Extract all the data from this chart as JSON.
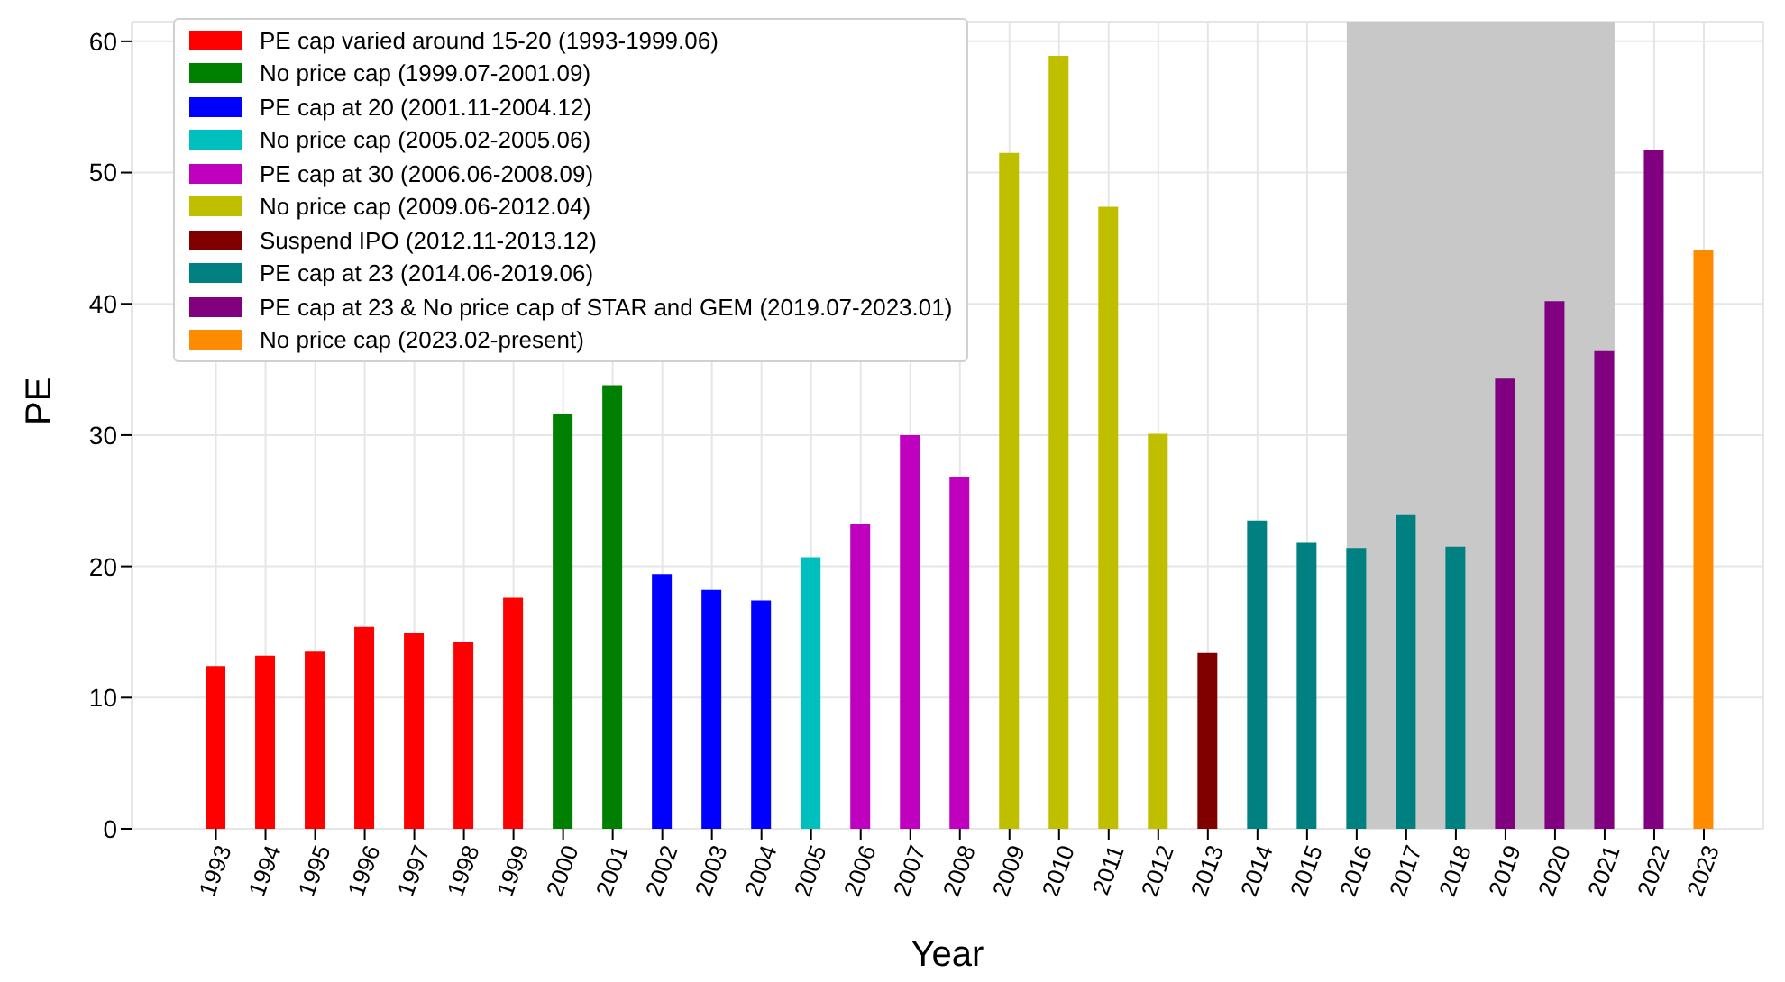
{
  "chart_data": {
    "type": "bar",
    "xlabel": "Year",
    "ylabel": "PE",
    "categories": [
      "1993",
      "1994",
      "1995",
      "1996",
      "1997",
      "1998",
      "1999",
      "2000",
      "2001",
      "2002",
      "2003",
      "2004",
      "2005",
      "2006",
      "2007",
      "2008",
      "2009",
      "2010",
      "2011",
      "2012",
      "2013",
      "2014",
      "2015",
      "2016",
      "2017",
      "2018",
      "2019",
      "2020",
      "2021",
      "2022",
      "2023"
    ],
    "stacked": true,
    "series": [
      {
        "name": "PE cap varied around 15-20 (1993-1999.06)",
        "color": "#ff0000",
        "values": [
          12.4,
          13.2,
          13.5,
          15.4,
          14.9,
          14.2,
          17.6,
          null,
          null,
          null,
          null,
          null,
          null,
          null,
          null,
          null,
          null,
          null,
          null,
          null,
          null,
          null,
          null,
          null,
          null,
          null,
          null,
          null,
          null,
          null,
          null
        ]
      },
      {
        "name": "No price cap (1999.07-2001.09)",
        "color": "#008000",
        "values": [
          null,
          null,
          null,
          null,
          null,
          null,
          null,
          31.6,
          33.8,
          null,
          null,
          null,
          null,
          null,
          null,
          null,
          null,
          null,
          null,
          null,
          null,
          null,
          null,
          null,
          null,
          null,
          null,
          null,
          null,
          null,
          null
        ]
      },
      {
        "name": "PE cap at 20 (2001.11-2004.12)",
        "color": "#0000ff",
        "values": [
          null,
          null,
          null,
          null,
          null,
          null,
          null,
          null,
          null,
          19.4,
          18.2,
          17.4,
          null,
          null,
          null,
          null,
          null,
          null,
          null,
          null,
          null,
          null,
          null,
          null,
          null,
          null,
          null,
          null,
          null,
          null,
          null
        ]
      },
      {
        "name": "No price cap (2005.02-2005.06)",
        "color": "#00bfbf",
        "values": [
          null,
          null,
          null,
          null,
          null,
          null,
          null,
          null,
          null,
          null,
          null,
          null,
          20.7,
          null,
          null,
          null,
          null,
          null,
          null,
          null,
          null,
          null,
          null,
          null,
          null,
          null,
          null,
          null,
          null,
          null,
          null
        ]
      },
      {
        "name": "PE cap at 30 (2006.06-2008.09)",
        "color": "#bf00bf",
        "values": [
          null,
          null,
          null,
          null,
          null,
          null,
          null,
          null,
          null,
          null,
          null,
          null,
          null,
          23.2,
          30.0,
          26.8,
          null,
          null,
          null,
          null,
          null,
          null,
          null,
          null,
          null,
          null,
          null,
          null,
          null,
          null,
          null
        ]
      },
      {
        "name": "No price cap (2009.06-2012.04)",
        "color": "#bfbf00",
        "values": [
          null,
          null,
          null,
          null,
          null,
          null,
          null,
          null,
          null,
          null,
          null,
          null,
          null,
          null,
          null,
          null,
          51.5,
          58.9,
          47.4,
          30.1,
          null,
          null,
          null,
          null,
          null,
          null,
          null,
          null,
          null,
          null,
          null
        ]
      },
      {
        "name": "Suspend IPO (2012.11-2013.12)",
        "color": "#800000",
        "values": [
          null,
          null,
          null,
          null,
          null,
          null,
          null,
          null,
          null,
          null,
          null,
          null,
          null,
          null,
          null,
          null,
          null,
          null,
          null,
          null,
          13.4,
          null,
          null,
          null,
          null,
          null,
          null,
          null,
          null,
          null,
          null
        ]
      },
      {
        "name": "PE cap at 23 (2014.06-2019.06)",
        "color": "#008080",
        "values": [
          null,
          null,
          null,
          null,
          null,
          null,
          null,
          null,
          null,
          null,
          null,
          null,
          null,
          null,
          null,
          null,
          null,
          null,
          null,
          null,
          null,
          23.5,
          21.8,
          21.4,
          23.9,
          21.5,
          null,
          null,
          null,
          null,
          null
        ]
      },
      {
        "name": "PE cap at 23 & No price cap of STAR and GEM (2019.07-2023.01)",
        "color": "#800080",
        "values": [
          null,
          null,
          null,
          null,
          null,
          null,
          null,
          null,
          null,
          null,
          null,
          null,
          null,
          null,
          null,
          null,
          null,
          null,
          null,
          null,
          null,
          null,
          null,
          null,
          null,
          null,
          34.3,
          40.2,
          36.4,
          51.7,
          null
        ]
      },
      {
        "name": "No price cap (2023.02-present)",
        "color": "#ff8c00",
        "values": [
          null,
          null,
          null,
          null,
          null,
          null,
          null,
          null,
          null,
          null,
          null,
          null,
          null,
          null,
          null,
          null,
          null,
          null,
          null,
          null,
          null,
          null,
          null,
          null,
          null,
          null,
          null,
          null,
          null,
          null,
          44.1
        ]
      }
    ],
    "ylim": [
      0,
      61.5
    ],
    "yticks": [
      0,
      10,
      20,
      30,
      40,
      50,
      60
    ],
    "bands": [
      {
        "axis": "x",
        "from": "2016",
        "to": "2021",
        "color": "#c8c8c8"
      }
    ],
    "grid": true,
    "legend": "top left"
  }
}
